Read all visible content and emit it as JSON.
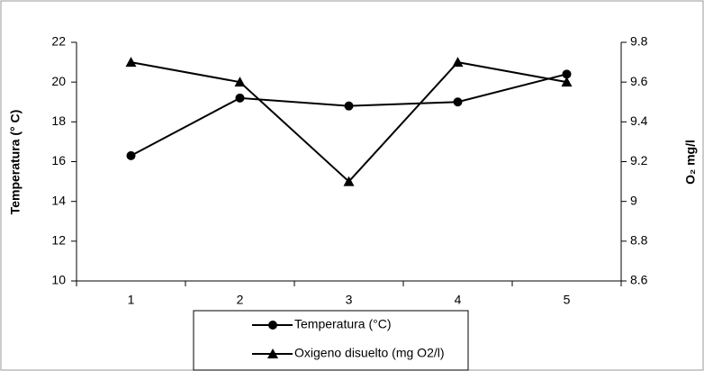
{
  "chart_data": {
    "type": "line",
    "categories": [
      "1",
      "2",
      "3",
      "4",
      "5"
    ],
    "y_label": "Temperatura (° C)",
    "y2_label": "O₂ mg/l",
    "ylim": [
      10,
      22
    ],
    "yticks": [
      10,
      12,
      14,
      16,
      18,
      20,
      22
    ],
    "y2lim": [
      8.6,
      9.8
    ],
    "y2ticks": [
      8.6,
      8.8,
      9,
      9.2,
      9.4,
      9.6,
      9.8
    ],
    "series": [
      {
        "name": "Temperatura (°C)",
        "color": "#000000",
        "marker": "circle",
        "values": [
          16.3,
          19.2,
          18.8,
          19.0,
          20.4
        ]
      },
      {
        "name": "Oxigeno disuelto (mg O2/l)",
        "color": "#000000",
        "marker": "triangle",
        "axis": "y2",
        "values": [
          9.7,
          9.6,
          9.1,
          9.7,
          9.6
        ]
      }
    ]
  }
}
